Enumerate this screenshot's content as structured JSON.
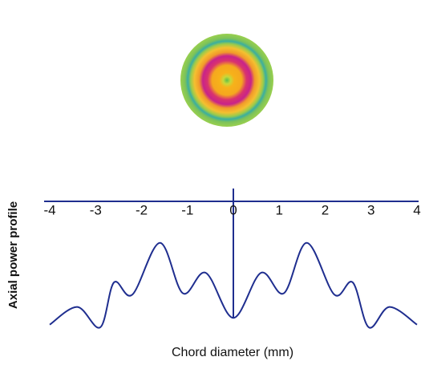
{
  "chart_data": {
    "type": "line",
    "x_label": "Chord diameter (mm)",
    "y_label": "Axial power profile",
    "xlim": [
      -4,
      4
    ],
    "xticks": [
      -4,
      -3,
      -2,
      -1,
      0,
      1,
      2,
      3,
      4
    ],
    "ylim": [
      0,
      10
    ],
    "color": "#1f2e8f",
    "x": [
      -4,
      -3.4,
      -2.9,
      -2.6,
      -2.2,
      -1.6,
      -1.1,
      -0.6,
      0,
      0.6,
      1.1,
      1.6,
      2.2,
      2.6,
      2.95,
      3.4,
      4
    ],
    "values": [
      0.9,
      2.2,
      0.7,
      4.0,
      3.1,
      6.9,
      3.2,
      4.7,
      1.4,
      4.7,
      3.2,
      6.9,
      3.1,
      4.0,
      0.7,
      2.2,
      0.9
    ]
  }
}
